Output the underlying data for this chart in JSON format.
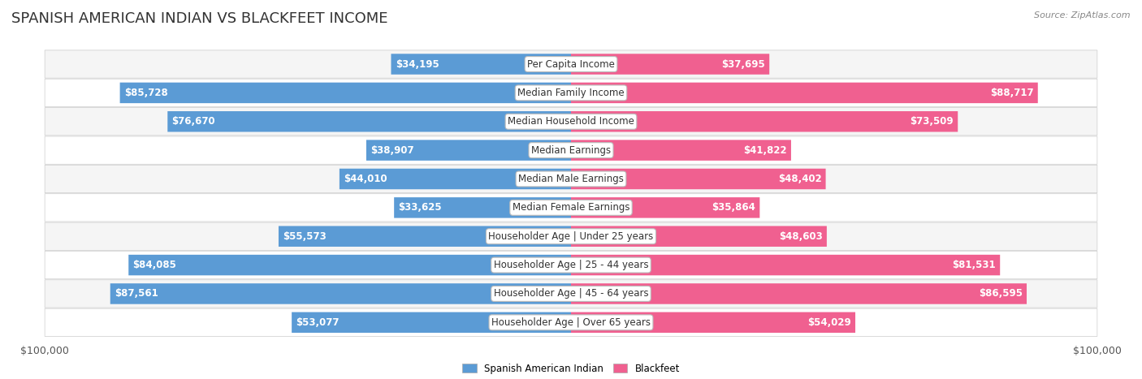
{
  "title": "SPANISH AMERICAN INDIAN VS BLACKFEET INCOME",
  "source": "Source: ZipAtlas.com",
  "categories": [
    "Per Capita Income",
    "Median Family Income",
    "Median Household Income",
    "Median Earnings",
    "Median Male Earnings",
    "Median Female Earnings",
    "Householder Age | Under 25 years",
    "Householder Age | 25 - 44 years",
    "Householder Age | 45 - 64 years",
    "Householder Age | Over 65 years"
  ],
  "left_values": [
    34195,
    85728,
    76670,
    38907,
    44010,
    33625,
    55573,
    84085,
    87561,
    53077
  ],
  "right_values": [
    37695,
    88717,
    73509,
    41822,
    48402,
    35864,
    48603,
    81531,
    86595,
    54029
  ],
  "left_labels": [
    "$34,195",
    "$85,728",
    "$76,670",
    "$38,907",
    "$44,010",
    "$33,625",
    "$55,573",
    "$84,085",
    "$87,561",
    "$53,077"
  ],
  "right_labels": [
    "$37,695",
    "$88,717",
    "$73,509",
    "$41,822",
    "$48,402",
    "$35,864",
    "$48,603",
    "$81,531",
    "$86,595",
    "$54,029"
  ],
  "max_value": 100000,
  "left_color_light": "#a8c8e8",
  "left_color_dark": "#5b9bd5",
  "right_color_light": "#f9c0d0",
  "right_color_dark": "#f06090",
  "left_label_inside": "#ffffff",
  "right_label_inside": "#ffffff",
  "label_outside": "#555555",
  "legend_left": "Spanish American Indian",
  "legend_right": "Blackfeet",
  "row_bg_odd": "#f5f5f5",
  "row_bg_even": "#ffffff",
  "title_fontsize": 13,
  "label_fontsize": 8.5,
  "category_fontsize": 8.5,
  "axis_label_fontsize": 9,
  "inside_threshold": 0.25
}
